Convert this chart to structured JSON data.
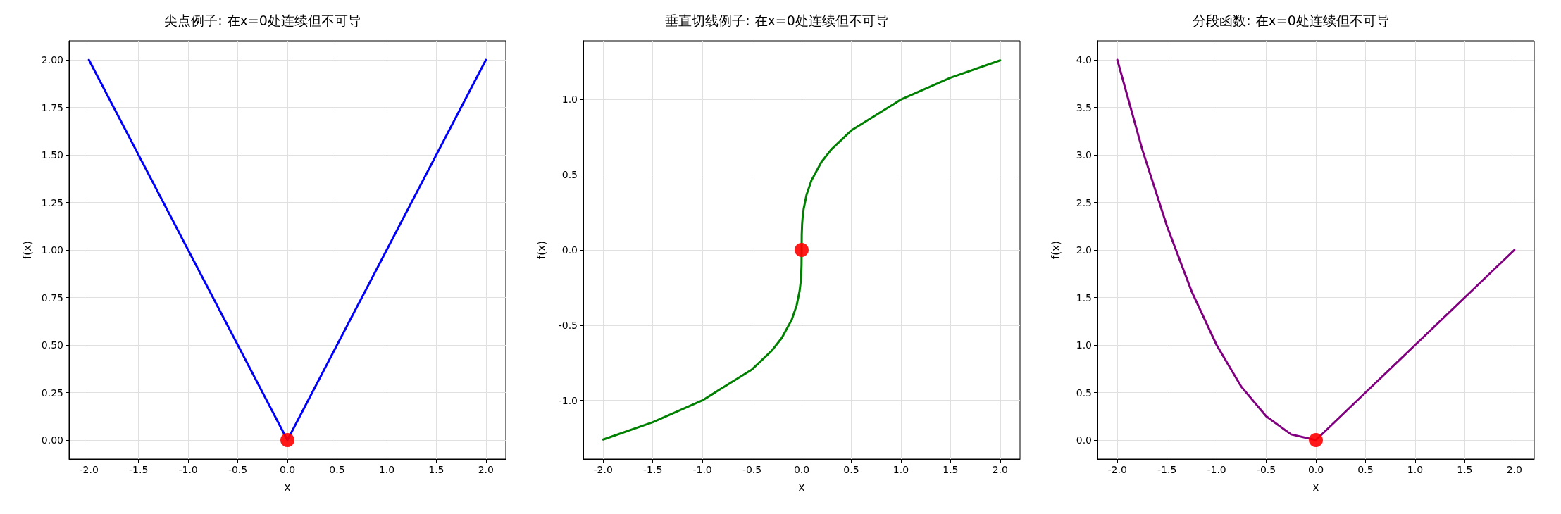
{
  "chart_data": [
    {
      "type": "line",
      "title": "尖点例子: 在x=0处连续但不可导",
      "xlabel": "x",
      "ylabel": "f(x)",
      "grid": true,
      "line_style": "solid",
      "xlim": [
        -2.2,
        2.2
      ],
      "xticks": [
        {
          "value": -2,
          "label": "-2.0"
        },
        {
          "value": -1.5,
          "label": "-1.5"
        },
        {
          "value": -1,
          "label": "-1.0"
        },
        {
          "value": -0.5,
          "label": "-0.5"
        },
        {
          "value": 0,
          "label": "0.0"
        },
        {
          "value": 0.5,
          "label": "0.5"
        },
        {
          "value": 1,
          "label": "1.0"
        },
        {
          "value": 1.5,
          "label": "1.5"
        },
        {
          "value": 2,
          "label": "2.0"
        }
      ],
      "ylim": [
        -0.1,
        2.1
      ],
      "yticks": [
        {
          "value": 0,
          "label": "0.00"
        },
        {
          "value": 0.25,
          "label": "0.25"
        },
        {
          "value": 0.5,
          "label": "0.50"
        },
        {
          "value": 0.75,
          "label": "0.75"
        },
        {
          "value": 1,
          "label": "1.00"
        },
        {
          "value": 1.25,
          "label": "1.25"
        },
        {
          "value": 1.5,
          "label": "1.50"
        },
        {
          "value": 1.75,
          "label": "1.75"
        },
        {
          "value": 2,
          "label": "2.00"
        }
      ],
      "series": [
        {
          "color": "#0000ff",
          "marker": "none",
          "x": [
            -2,
            0,
            2
          ],
          "values": [
            2,
            0,
            2
          ]
        },
        {
          "type": "scatter",
          "color": "#ff0000",
          "marker": "circle",
          "x": [
            0
          ],
          "values": [
            0
          ]
        }
      ]
    },
    {
      "type": "line",
      "title": "垂直切线例子: 在x=0处连续但不可导",
      "xlabel": "x",
      "ylabel": "f(x)",
      "grid": true,
      "line_style": "solid",
      "xlim": [
        -2.2,
        2.2
      ],
      "xticks": [
        {
          "value": -2,
          "label": "-2.0"
        },
        {
          "value": -1.5,
          "label": "-1.5"
        },
        {
          "value": -1,
          "label": "-1.0"
        },
        {
          "value": -0.5,
          "label": "-0.5"
        },
        {
          "value": 0,
          "label": "0.0"
        },
        {
          "value": 0.5,
          "label": "0.5"
        },
        {
          "value": 1,
          "label": "1.0"
        },
        {
          "value": 1.5,
          "label": "1.5"
        },
        {
          "value": 2,
          "label": "2.0"
        }
      ],
      "ylim": [
        -1.39,
        1.39
      ],
      "yticks": [
        {
          "value": -1,
          "label": "-1.0"
        },
        {
          "value": -0.5,
          "label": "-0.5"
        },
        {
          "value": 0,
          "label": "0.0"
        },
        {
          "value": 0.5,
          "label": "0.5"
        },
        {
          "value": 1,
          "label": "1.0"
        }
      ],
      "series": [
        {
          "color": "#008000",
          "marker": "none",
          "x": [
            -2,
            -1.5,
            -1,
            -0.5,
            -0.3,
            -0.2,
            -0.1,
            -0.05,
            -0.02,
            -0.01,
            -0.005,
            -0.001,
            0,
            0.001,
            0.005,
            0.01,
            0.02,
            0.05,
            0.1,
            0.2,
            0.3,
            0.5,
            1,
            1.5,
            2
          ],
          "values": [
            -1.26,
            -1.145,
            -1,
            -0.794,
            -0.669,
            -0.585,
            -0.464,
            -0.368,
            -0.271,
            -0.215,
            -0.171,
            -0.1,
            0,
            0.1,
            0.171,
            0.215,
            0.271,
            0.368,
            0.464,
            0.585,
            0.669,
            0.794,
            1,
            1.145,
            1.26
          ]
        },
        {
          "type": "scatter",
          "color": "#ff0000",
          "marker": "circle",
          "x": [
            0
          ],
          "values": [
            0
          ]
        }
      ]
    },
    {
      "type": "line",
      "title": "分段函数: 在x=0处连续但不可导",
      "xlabel": "x",
      "ylabel": "f(x)",
      "grid": true,
      "line_style": "solid",
      "xlim": [
        -2.2,
        2.2
      ],
      "xticks": [
        {
          "value": -2,
          "label": "-2.0"
        },
        {
          "value": -1.5,
          "label": "-1.5"
        },
        {
          "value": -1,
          "label": "-1.0"
        },
        {
          "value": -0.5,
          "label": "-0.5"
        },
        {
          "value": 0,
          "label": "0.0"
        },
        {
          "value": 0.5,
          "label": "0.5"
        },
        {
          "value": 1,
          "label": "1.0"
        },
        {
          "value": 1.5,
          "label": "1.5"
        },
        {
          "value": 2,
          "label": "2.0"
        }
      ],
      "ylim": [
        -0.2,
        4.2
      ],
      "yticks": [
        {
          "value": 0,
          "label": "0.0"
        },
        {
          "value": 0.5,
          "label": "0.5"
        },
        {
          "value": 1,
          "label": "1.0"
        },
        {
          "value": 1.5,
          "label": "1.5"
        },
        {
          "value": 2,
          "label": "2.0"
        },
        {
          "value": 2.5,
          "label": "2.5"
        },
        {
          "value": 3,
          "label": "3.0"
        },
        {
          "value": 3.5,
          "label": "3.5"
        },
        {
          "value": 4,
          "label": "4.0"
        }
      ],
      "series": [
        {
          "color": "#800080",
          "marker": "none",
          "x": [
            -2,
            -1.75,
            -1.5,
            -1.25,
            -1,
            -0.75,
            -0.5,
            -0.25,
            0,
            0.5,
            1,
            1.5,
            2
          ],
          "values": [
            4,
            3.06,
            2.25,
            1.56,
            1,
            0.56,
            0.25,
            0.06,
            0,
            0.5,
            1,
            1.5,
            2
          ]
        },
        {
          "type": "scatter",
          "color": "#ff0000",
          "marker": "circle",
          "x": [
            0
          ],
          "values": [
            0
          ]
        }
      ]
    }
  ]
}
